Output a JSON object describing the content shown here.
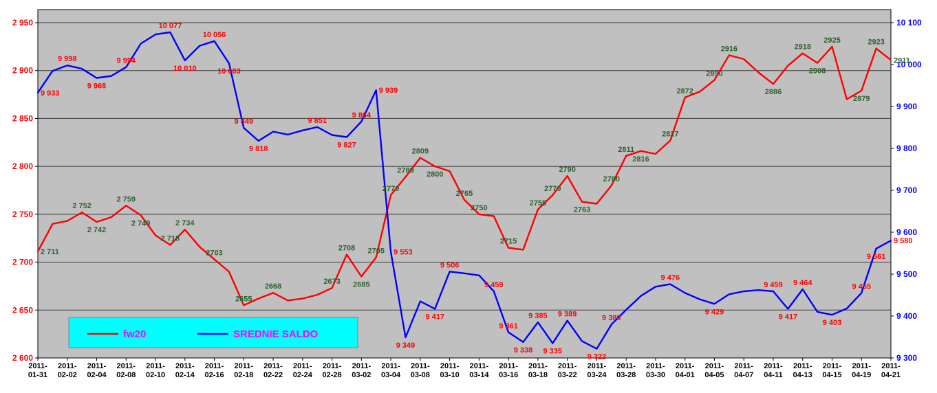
{
  "chart_data": {
    "type": "line",
    "title": "",
    "plot_bg": "#c0c0c0",
    "grid_color": "#3a3a3a",
    "n_points": 59,
    "x_tick_dates": [
      "2011-01-31",
      "2011-02-02",
      "2011-02-04",
      "2011-02-08",
      "2011-02-10",
      "2011-02-14",
      "2011-02-16",
      "2011-02-18",
      "2011-02-22",
      "2011-02-24",
      "2011-02-28",
      "2011-03-02",
      "2011-03-04",
      "2011-03-08",
      "2011-03-10",
      "2011-03-14",
      "2011-03-16",
      "2011-03-18",
      "2011-03-22",
      "2011-03-24",
      "2011-03-28",
      "2011-03-30",
      "2011-04-01",
      "2011-04-05",
      "2011-04-07",
      "2011-04-11",
      "2011-04-13",
      "2011-04-15",
      "2011-04-19",
      "2011-04-21"
    ],
    "x_tick_indices": [
      0,
      2,
      4,
      6,
      8,
      10,
      12,
      14,
      16,
      18,
      20,
      22,
      24,
      26,
      28,
      30,
      32,
      34,
      36,
      38,
      40,
      42,
      44,
      46,
      48,
      50,
      52,
      54,
      56,
      58
    ],
    "left_axis": {
      "min": 2600,
      "max": 2950,
      "step": 50,
      "color": "#ff0000",
      "tick_labels": [
        "2 600",
        "2 650",
        "2 700",
        "2 750",
        "2 800",
        "2 850",
        "2 900",
        "2 950"
      ]
    },
    "right_axis": {
      "min": 9300,
      "max": 10100,
      "step": 100,
      "color": "#0000ff",
      "tick_labels": [
        "9 300",
        "9 400",
        "9 500",
        "9 600",
        "9 700",
        "9 800",
        "9 900",
        "10 000",
        "10 100"
      ]
    },
    "series": [
      {
        "name": "fw20",
        "axis": "left",
        "color": "#ff0000",
        "label_color": "#2f5f2f",
        "values": [
          2711,
          2740,
          2743,
          2752,
          2742,
          2747,
          2759,
          2749,
          2728,
          2718,
          2734,
          2716,
          2703,
          2690,
          2655,
          2662,
          2668,
          2660,
          2662,
          2666,
          2673,
          2708,
          2685,
          2705,
          2770,
          2789,
          2809,
          2800,
          2795,
          2765,
          2750,
          2748,
          2715,
          2713,
          2755,
          2770,
          2790,
          2763,
          2761,
          2780,
          2811,
          2816,
          2813,
          2827,
          2872,
          2878,
          2890,
          2916,
          2912,
          2898,
          2886,
          2905,
          2918,
          2908,
          2925,
          2870,
          2879,
          2923,
          2911
        ],
        "labels": [
          {
            "i": 0,
            "t": "2 711",
            "pos": "right"
          },
          {
            "i": 3,
            "t": "2 752",
            "pos": "above"
          },
          {
            "i": 4,
            "t": "2 742",
            "pos": "below"
          },
          {
            "i": 6,
            "t": "2 759",
            "pos": "above"
          },
          {
            "i": 7,
            "t": "2 749",
            "pos": "below"
          },
          {
            "i": 9,
            "t": "2 718",
            "pos": "above"
          },
          {
            "i": 10,
            "t": "2 734",
            "pos": "above"
          },
          {
            "i": 12,
            "t": "2703",
            "pos": "above"
          },
          {
            "i": 14,
            "t": "2655",
            "pos": "above"
          },
          {
            "i": 16,
            "t": "2668",
            "pos": "above"
          },
          {
            "i": 20,
            "t": "2673",
            "pos": "above"
          },
          {
            "i": 21,
            "t": "2708",
            "pos": "above"
          },
          {
            "i": 22,
            "t": "2685",
            "pos": "below"
          },
          {
            "i": 23,
            "t": "2705",
            "pos": "above"
          },
          {
            "i": 24,
            "t": "2770",
            "pos": "above"
          },
          {
            "i": 25,
            "t": "2789",
            "pos": "above"
          },
          {
            "i": 26,
            "t": "2809",
            "pos": "above"
          },
          {
            "i": 27,
            "t": "2800",
            "pos": "below"
          },
          {
            "i": 29,
            "t": "2765",
            "pos": "above"
          },
          {
            "i": 30,
            "t": "2750",
            "pos": "above"
          },
          {
            "i": 32,
            "t": "2715",
            "pos": "above"
          },
          {
            "i": 34,
            "t": "2755",
            "pos": "above"
          },
          {
            "i": 35,
            "t": "2770",
            "pos": "above"
          },
          {
            "i": 36,
            "t": "2790",
            "pos": "above"
          },
          {
            "i": 37,
            "t": "2763",
            "pos": "below"
          },
          {
            "i": 39,
            "t": "2780",
            "pos": "above"
          },
          {
            "i": 40,
            "t": "2811",
            "pos": "above"
          },
          {
            "i": 41,
            "t": "2816",
            "pos": "below"
          },
          {
            "i": 43,
            "t": "2827",
            "pos": "above"
          },
          {
            "i": 44,
            "t": "2872",
            "pos": "above"
          },
          {
            "i": 46,
            "t": "2890",
            "pos": "above"
          },
          {
            "i": 47,
            "t": "2916",
            "pos": "above"
          },
          {
            "i": 50,
            "t": "2886",
            "pos": "below"
          },
          {
            "i": 52,
            "t": "2918",
            "pos": "above"
          },
          {
            "i": 53,
            "t": "2908",
            "pos": "below"
          },
          {
            "i": 54,
            "t": "2925",
            "pos": "above"
          },
          {
            "i": 56,
            "t": "2879",
            "pos": "below"
          },
          {
            "i": 57,
            "t": "2923",
            "pos": "above"
          },
          {
            "i": 58,
            "t": "2911",
            "pos": "right"
          }
        ]
      },
      {
        "name": "SREDNIE SALDO",
        "axis": "right",
        "color": "#0000ff",
        "label_color": "#ff0000",
        "values": [
          9933,
          9985,
          9998,
          9990,
          9968,
          9973,
          9994,
          10050,
          10072,
          10077,
          10010,
          10045,
          10056,
          10003,
          9849,
          9818,
          9840,
          9833,
          9843,
          9851,
          9832,
          9827,
          9864,
          9939,
          9553,
          9349,
          9435,
          9417,
          9506,
          9502,
          9497,
          9459,
          9361,
          9338,
          9385,
          9335,
          9389,
          9340,
          9322,
          9380,
          9415,
          9448,
          9470,
          9476,
          9455,
          9440,
          9429,
          9452,
          9459,
          9462,
          9459,
          9417,
          9464,
          9410,
          9403,
          9418,
          9455,
          9561,
          9580
        ],
        "labels": [
          {
            "i": 0,
            "t": "9 933",
            "pos": "right"
          },
          {
            "i": 2,
            "t": "9 998",
            "pos": "above"
          },
          {
            "i": 4,
            "t": "9 968",
            "pos": "below"
          },
          {
            "i": 6,
            "t": "9 994",
            "pos": "above"
          },
          {
            "i": 9,
            "t": "10 077",
            "pos": "above"
          },
          {
            "i": 10,
            "t": "10 010",
            "pos": "below"
          },
          {
            "i": 12,
            "t": "10 056",
            "pos": "above"
          },
          {
            "i": 13,
            "t": "10 003",
            "pos": "below"
          },
          {
            "i": 14,
            "t": "9 849",
            "pos": "above"
          },
          {
            "i": 15,
            "t": "9 818",
            "pos": "below"
          },
          {
            "i": 19,
            "t": "9 851",
            "pos": "above"
          },
          {
            "i": 21,
            "t": "9 827",
            "pos": "below"
          },
          {
            "i": 22,
            "t": "9 864",
            "pos": "above"
          },
          {
            "i": 23,
            "t": "9 939",
            "pos": "right"
          },
          {
            "i": 24,
            "t": "9 553",
            "pos": "right"
          },
          {
            "i": 25,
            "t": "9 349",
            "pos": "below"
          },
          {
            "i": 27,
            "t": "9 417",
            "pos": "below"
          },
          {
            "i": 28,
            "t": "9 506",
            "pos": "above"
          },
          {
            "i": 31,
            "t": "9 459",
            "pos": "above"
          },
          {
            "i": 32,
            "t": "9 361",
            "pos": "above"
          },
          {
            "i": 33,
            "t": "9 338",
            "pos": "below"
          },
          {
            "i": 34,
            "t": "9 385",
            "pos": "above"
          },
          {
            "i": 35,
            "t": "9 335",
            "pos": "below"
          },
          {
            "i": 36,
            "t": "9 389",
            "pos": "above"
          },
          {
            "i": 38,
            "t": "9 322",
            "pos": "below"
          },
          {
            "i": 39,
            "t": "9 380",
            "pos": "above"
          },
          {
            "i": 43,
            "t": "9 476",
            "pos": "above"
          },
          {
            "i": 46,
            "t": "9 429",
            "pos": "below"
          },
          {
            "i": 50,
            "t": "9 459",
            "pos": "above"
          },
          {
            "i": 51,
            "t": "9 417",
            "pos": "below"
          },
          {
            "i": 52,
            "t": "9 464",
            "pos": "above"
          },
          {
            "i": 54,
            "t": "9 403",
            "pos": "below"
          },
          {
            "i": 56,
            "t": "9 455",
            "pos": "above"
          },
          {
            "i": 57,
            "t": "9 561",
            "pos": "below"
          },
          {
            "i": 58,
            "t": "9 580",
            "pos": "right"
          }
        ]
      }
    ],
    "legend": {
      "bg": "#00ffff",
      "border": "#808080",
      "text_color": "#ff00ff",
      "items": [
        {
          "label": "fw20",
          "color": "#ff0000"
        },
        {
          "label": "SREDNIE SALDO",
          "color": "#0000ff"
        }
      ]
    }
  }
}
